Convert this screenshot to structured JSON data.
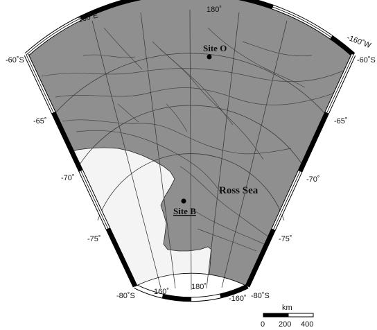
{
  "map": {
    "longitude_labels_top": [
      "160˚E",
      "180˚",
      "-160˚W"
    ],
    "longitude_labels_bottom": [
      "160˚",
      "180˚",
      "-160˚"
    ],
    "latitude_labels_left": [
      "-60˚S",
      "-65˚",
      "-70˚",
      "-75˚",
      "-80˚S"
    ],
    "latitude_labels_right": [
      "-60˚S",
      "-65˚",
      "-70˚",
      "-75˚",
      "-80˚S"
    ],
    "sites": [
      {
        "name": "Site O",
        "lat": -62.0,
        "lon": 178.0
      },
      {
        "name": "Site B",
        "lat": -73.4,
        "lon": 170.5
      }
    ],
    "sea_label": "Ross Sea",
    "scale_bar": {
      "unit": "km",
      "ticks": [
        "0",
        "200",
        "400"
      ]
    },
    "colors": {
      "ocean": "#8f8f8f",
      "land": "#f4f4f4",
      "grid": "#3c3c3c",
      "contour": "#444444",
      "frame_dark": "#000000",
      "frame_light": "#ffffff"
    }
  }
}
